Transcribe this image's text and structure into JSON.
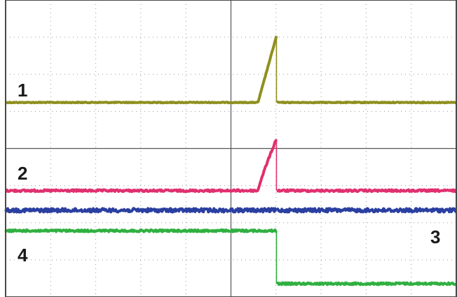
{
  "chart_data": {
    "type": "line",
    "grid": true,
    "grid_style": "dotted, 10 x 8 divisions, solid center crosshair",
    "x": [
      0,
      0.56,
      0.601,
      0.602,
      1
    ],
    "series": [
      {
        "name": "1",
        "color": "#8f8f1f",
        "values": [
          0.345,
          0.345,
          0.122,
          0.345,
          0.345
        ],
        "noise": "low"
      },
      {
        "name": "2",
        "color": "#e0306e",
        "values": [
          0.642,
          0.642,
          0.468,
          0.642,
          0.642
        ],
        "knee": 0.562,
        "noise": "medium"
      },
      {
        "name": "3",
        "color": "#2a3fa0",
        "values": [
          0.708,
          0.708,
          0.708,
          0.708,
          0.708
        ],
        "noise": "high"
      },
      {
        "name": "4",
        "color": "#30b040",
        "values": [
          0.777,
          0.777,
          0.777,
          0.955,
          0.955
        ],
        "noise": "medium"
      }
    ],
    "labels": [
      "1",
      "2",
      "3",
      "4"
    ],
    "xlabel": "",
    "ylabel": "",
    "title": ""
  }
}
